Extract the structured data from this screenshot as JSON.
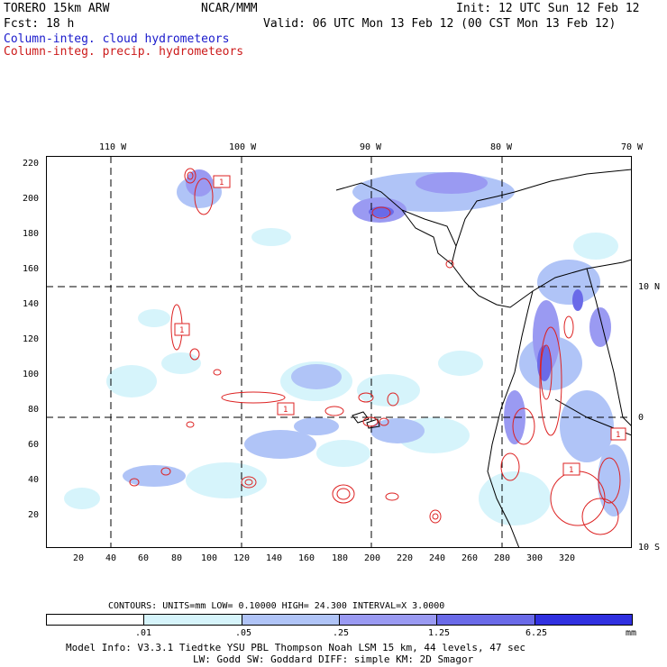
{
  "header": {
    "model": "TORERO  15km ARW",
    "org": "NCAR/MMM",
    "init": "Init: 12 UTC Sun 12 Feb 12",
    "forecast": "Fcst:   18 h",
    "valid": "Valid: 06 UTC Mon 13 Feb 12 (00 CST Mon 13 Feb 12)",
    "field_cloud": "Column-integ. cloud hydrometeors",
    "field_precip": "Column-integ. precip. hydrometeors"
  },
  "colors": {
    "cloud_label": "#1a1acc",
    "precip_label": "#cc1a1a",
    "coastline": "#000000",
    "contour": "#dd2222",
    "shade_1": "#d6f4fb",
    "shade_2": "#b0c4f7",
    "shade_3": "#9a9af2",
    "shade_4": "#6a6ae8",
    "shade_5": "#3030e0"
  },
  "map": {
    "top_lon_labels": [
      "110 W",
      "100 W",
      "90 W",
      "80 W",
      "70 W"
    ],
    "right_lat_labels": [
      "10 N",
      "0",
      "10 S"
    ],
    "left_grid_labels": [
      "220",
      "200",
      "180",
      "160",
      "140",
      "120",
      "100",
      "80",
      "60",
      "40",
      "20"
    ],
    "bottom_grid_labels": [
      "20",
      "40",
      "60",
      "80",
      "100",
      "120",
      "140",
      "160",
      "180",
      "200",
      "220",
      "240",
      "260",
      "280",
      "300",
      "320"
    ],
    "box_labels": [
      "1",
      "1",
      "1",
      "1",
      "1"
    ]
  },
  "contours": {
    "caption": "CONTOURS:  UNITS=mm  LOW= 0.10000      HIGH=  24.300      INTERVAL=X  3.0000"
  },
  "colorbar": {
    "thresholds": [
      ".01",
      ".05",
      ".25",
      "1.25",
      "6.25"
    ],
    "unit": "mm",
    "segment_colors": [
      "#ffffff",
      "#d6f4fb",
      "#b0c4f7",
      "#9a9af2",
      "#6a6ae8",
      "#3030e0"
    ]
  },
  "footer": {
    "line1": "Model Info: V3.3.1   Tiedtke YSU PBL  Thompson    Noah LSM  15 km,   44 levels,   47 sec",
    "line2": "LW: Godd SW: Goddard DIFF: simple KM: 2D Smagor"
  }
}
